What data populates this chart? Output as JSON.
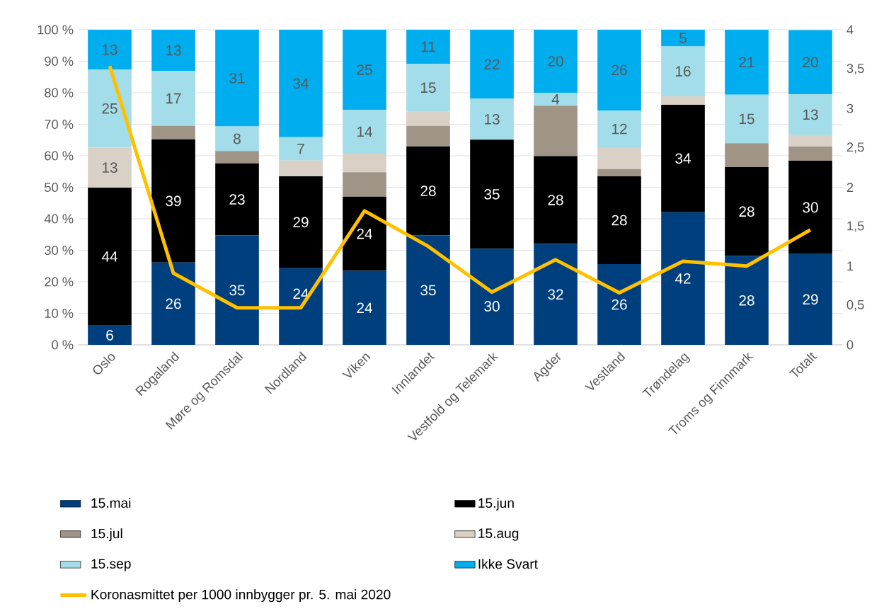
{
  "chart_data": {
    "type": "bar",
    "stacked": true,
    "grid": "y",
    "legend": "bottom",
    "categories": [
      "Oslo",
      "Rogaland",
      "Møre og Romsdal",
      "Nordland",
      "Viken",
      "Innlandet",
      "Vestfold og Telemark",
      "Agder",
      "Vestland",
      "Trøndelag",
      "Troms og Finnmark",
      "Totalt"
    ],
    "series": [
      {
        "name": "15.mai",
        "color": "#003f7d",
        "values": [
          6.1,
          26.1,
          34.7,
          24.3,
          23.5,
          34.7,
          30.5,
          32.0,
          25.6,
          42.1,
          28.2,
          28.8
        ],
        "value_labels": [
          "6",
          "26",
          "35",
          "24",
          "24",
          "35",
          "30",
          "32",
          "26",
          "42",
          "28",
          "29"
        ]
      },
      {
        "name": "15.jun",
        "color": "#000000",
        "values": [
          43.8,
          39.1,
          22.9,
          29.2,
          23.5,
          28.3,
          34.6,
          27.9,
          27.9,
          34.1,
          28.2,
          29.6
        ],
        "value_labels": [
          "44",
          "39",
          "23",
          "29",
          "24",
          "28",
          "35",
          "28",
          "28",
          "34",
          "28",
          "30"
        ]
      },
      {
        "name": "15.jul",
        "color": "#a09487",
        "values": [
          0,
          4.3,
          3.9,
          0,
          7.8,
          6.5,
          0,
          16.0,
          2.3,
          0,
          7.6,
          4.5
        ],
        "value_labels": [
          null,
          null,
          null,
          null,
          null,
          null,
          null,
          null,
          null,
          null,
          null,
          null
        ]
      },
      {
        "name": "15.aug",
        "color": "#d9d0c6",
        "values": [
          12.7,
          0,
          0,
          5.0,
          5.9,
          4.5,
          0,
          0,
          6.9,
          2.7,
          0,
          3.7
        ],
        "value_labels": [
          "13",
          null,
          null,
          null,
          null,
          null,
          null,
          null,
          null,
          null,
          null,
          null
        ]
      },
      {
        "name": "15.sep",
        "color": "#a3dde9",
        "values": [
          24.8,
          17.4,
          7.8,
          7.4,
          13.9,
          15.2,
          13.0,
          4.1,
          11.7,
          15.8,
          15.4,
          12.9
        ],
        "value_labels": [
          "25",
          "17",
          "8",
          "7",
          "14",
          "15",
          "13",
          "4",
          "12",
          "16",
          "15",
          "13"
        ]
      },
      {
        "name": "Ikke Svart",
        "color": "#00adee",
        "values": [
          12.6,
          13.1,
          30.7,
          34.1,
          25.4,
          10.8,
          21.9,
          20.0,
          25.6,
          5.3,
          20.6,
          20.4
        ],
        "value_labels": [
          "13",
          "13",
          "31",
          "34",
          "25",
          "11",
          "22",
          "20",
          "26",
          "5",
          "21",
          "20"
        ]
      },
      {
        "name": "Koronasmittet per 1000 innbygger pr. 5. mai 2020",
        "type": "line",
        "axis": "y2",
        "color": "#ffc000",
        "values": [
          3.54,
          0.91,
          0.47,
          0.47,
          1.7,
          1.25,
          0.67,
          1.08,
          0.66,
          1.06,
          1.0,
          1.46
        ]
      }
    ],
    "ylim": [
      0,
      100
    ],
    "yticks": [
      {
        "value": 0,
        "label": "0 %"
      },
      {
        "value": 10,
        "label": "10 %"
      },
      {
        "value": 20,
        "label": "20 %"
      },
      {
        "value": 30,
        "label": "30 %"
      },
      {
        "value": 40,
        "label": "40 %"
      },
      {
        "value": 50,
        "label": "50 %"
      },
      {
        "value": 60,
        "label": "60 %"
      },
      {
        "value": 70,
        "label": "70 %"
      },
      {
        "value": 80,
        "label": "80 %"
      },
      {
        "value": 90,
        "label": "90 %"
      },
      {
        "value": 100,
        "label": "100 %"
      }
    ],
    "y2lim": [
      0,
      4
    ],
    "y2ticks": [
      0,
      {
        "value": 0.5,
        "label": "0,5"
      },
      1,
      {
        "value": 1.5,
        "label": "1,5"
      },
      2,
      {
        "value": 2.5,
        "label": "2,5"
      },
      3,
      {
        "value": 3.5,
        "label": "3,5"
      },
      4
    ]
  }
}
